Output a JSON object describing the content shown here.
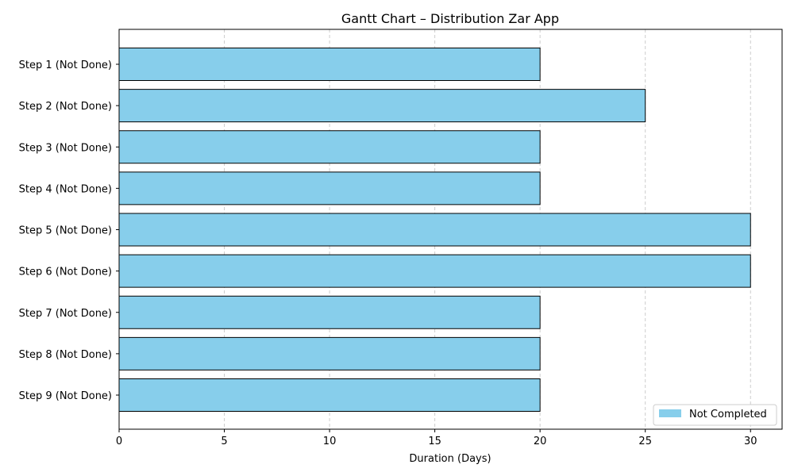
{
  "chart_data": {
    "type": "bar",
    "orientation": "horizontal",
    "title": "Gantt Chart – Distribution Zar App",
    "xlabel": "Duration (Days)",
    "ylabel": "",
    "categories": [
      "Step 1 (Not Done)",
      "Step 2 (Not Done)",
      "Step 3 (Not Done)",
      "Step 4 (Not Done)",
      "Step 5 (Not Done)",
      "Step 6 (Not Done)",
      "Step 7 (Not Done)",
      "Step 8 (Not Done)",
      "Step 9 (Not Done)"
    ],
    "starts": [
      0,
      0,
      0,
      0,
      0,
      0,
      0,
      0,
      0
    ],
    "values": [
      20,
      25,
      20,
      20,
      30,
      30,
      20,
      20,
      20
    ],
    "xlim": [
      0,
      31.5
    ],
    "xticks": [
      0,
      5,
      10,
      15,
      20,
      25,
      30
    ],
    "grid": "vertical dashed",
    "legend": {
      "placement": "bottom-right",
      "entries": [
        {
          "name": "Not Completed",
          "color": "#87CEEB"
        }
      ]
    },
    "colors": {
      "bar": "#87CEEB",
      "edge": "#000000",
      "grid": "#cccccc"
    }
  }
}
